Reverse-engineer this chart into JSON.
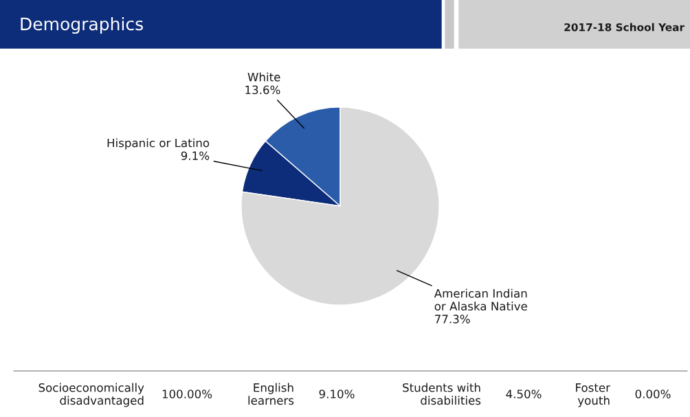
{
  "chart_data": {
    "type": "pie",
    "title": "Demographics",
    "subtitle": "2017-18 School Year",
    "categories": [
      "White",
      "Hispanic or Latino",
      "American Indian\nor Alaska Native"
    ],
    "values": [
      13.6,
      9.1,
      77.3
    ],
    "colors": [
      "#2a5caa",
      "#0d2d7a",
      "#d9d9d9"
    ],
    "value_labels": [
      "13.6%",
      "9.1%",
      "77.3%"
    ],
    "annotations": [
      "Socioeconomically\ndisadvantaged",
      "100.00%",
      "English\nlearners",
      "9.10%",
      "Students with\ndisabilities",
      "4.50%",
      "Foster\nyouth",
      "0.00%"
    ]
  }
}
